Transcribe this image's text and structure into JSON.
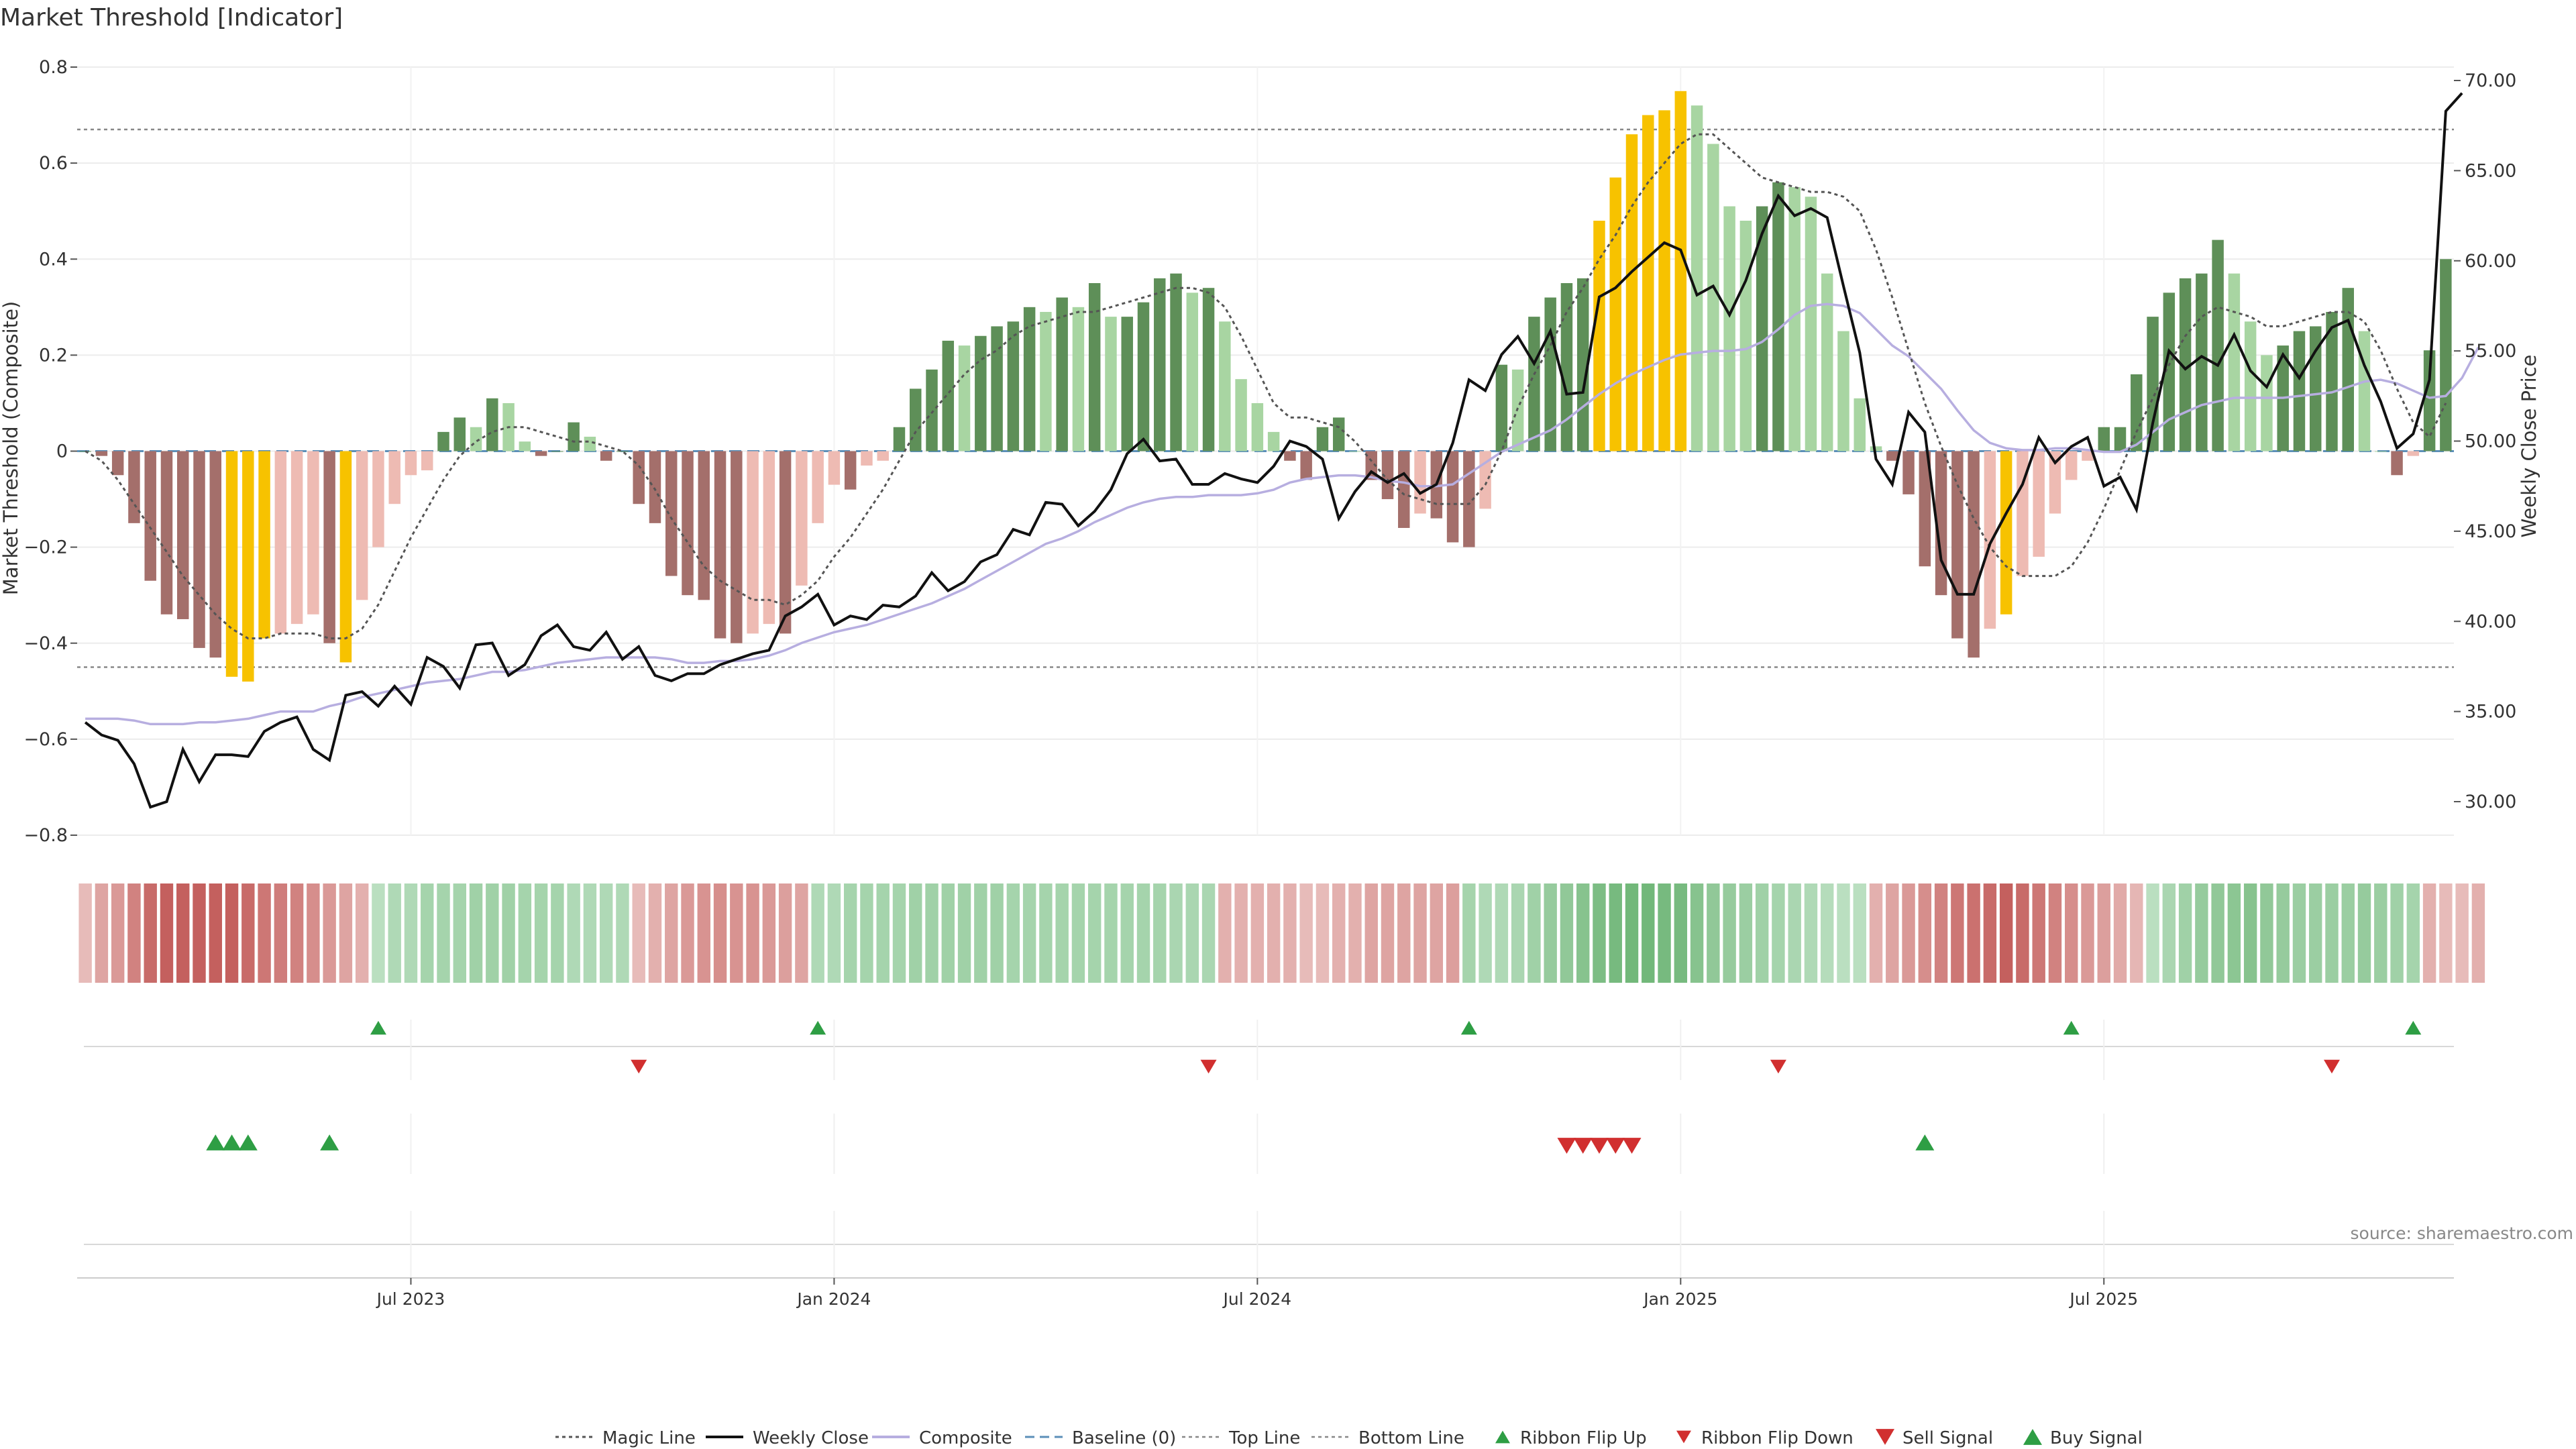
{
  "title": "Market Threshold [Indicator]",
  "source": "source: sharemaestro.com",
  "colors": {
    "positive_strong": "#5e8f58",
    "positive_light": "#a8d5a2",
    "negative_strong": "#a46f6b",
    "negative_light": "#eebbb3",
    "extreme": "#f7c200",
    "weekly_close": "#111111",
    "composite": "#b7aee0",
    "magic_line": "#555555",
    "baseline": "#5b8fb8",
    "buy": "#2e9e44",
    "sell": "#d12f2f"
  },
  "chart_data": {
    "type": "bar",
    "title": "Market Threshold [Indicator]",
    "ylabel_left": "Market Threshold (Composite)",
    "ylabel_right": "Weekly Close Price",
    "ylim_left": [
      -0.8,
      0.8
    ],
    "ylim_right": [
      30,
      70
    ],
    "left_ticks": [
      "0.8",
      "0.6",
      "0.4",
      "0.2",
      "0",
      "−0.2",
      "−0.4",
      "−0.6",
      "−0.8"
    ],
    "right_ticks": [
      "70.00",
      "65.00",
      "60.00",
      "55.00",
      "50.00",
      "45.00",
      "40.00",
      "35.00",
      "30.00"
    ],
    "x_ticks": [
      "Jul 2023",
      "Jan 2024",
      "Jul 2024",
      "Jan 2025",
      "Jul 2025"
    ],
    "x_tick_weeks": [
      20,
      46,
      72,
      98,
      124
    ],
    "top_line": 0.67,
    "bottom_line": -0.45,
    "baseline": 0,
    "grid": true,
    "legend_position": "bottom-center",
    "legend": [
      "Magic Line",
      "Weekly Close",
      "Composite",
      "Baseline (0)",
      "Top Line",
      "Bottom Line",
      "Ribbon Flip Up",
      "Ribbon Flip Down",
      "Sell Signal",
      "Buy Signal"
    ],
    "composite_bars": [
      0.0,
      -0.01,
      -0.05,
      -0.15,
      -0.27,
      -0.34,
      -0.35,
      -0.41,
      -0.43,
      -0.47,
      -0.48,
      -0.39,
      -0.38,
      -0.36,
      -0.34,
      -0.4,
      -0.44,
      -0.31,
      -0.2,
      -0.11,
      -0.05,
      -0.04,
      0.04,
      0.07,
      0.05,
      0.11,
      0.1,
      0.02,
      -0.01,
      0.0,
      0.06,
      0.03,
      -0.02,
      0.0,
      -0.11,
      -0.15,
      -0.26,
      -0.3,
      -0.31,
      -0.39,
      -0.4,
      -0.38,
      -0.36,
      -0.38,
      -0.28,
      -0.15,
      -0.07,
      -0.08,
      -0.03,
      -0.02,
      0.05,
      0.13,
      0.17,
      0.23,
      0.22,
      0.24,
      0.26,
      0.27,
      0.3,
      0.29,
      0.32,
      0.3,
      0.35,
      0.28,
      0.28,
      0.31,
      0.36,
      0.37,
      0.33,
      0.34,
      0.27,
      0.15,
      0.1,
      0.04,
      -0.02,
      -0.06,
      0.05,
      0.07,
      0.0,
      -0.06,
      -0.1,
      -0.16,
      -0.13,
      -0.14,
      -0.19,
      -0.2,
      -0.12,
      0.18,
      0.17,
      0.28,
      0.32,
      0.35,
      0.36,
      0.48,
      0.57,
      0.66,
      0.7,
      0.71,
      0.75,
      0.72,
      0.64,
      0.51,
      0.48,
      0.51,
      0.56,
      0.55,
      0.53,
      0.37,
      0.25,
      0.11,
      0.01,
      -0.02,
      -0.09,
      -0.24,
      -0.3,
      -0.39,
      -0.43,
      -0.37,
      -0.34,
      -0.26,
      -0.22,
      -0.13,
      -0.06,
      -0.02,
      0.05,
      0.05,
      0.16,
      0.28,
      0.33,
      0.36,
      0.37,
      0.44,
      0.37,
      0.27,
      0.2,
      0.22,
      0.25,
      0.26,
      0.29,
      0.34,
      0.25,
      0.0,
      -0.05,
      -0.01,
      0.21,
      0.4
    ],
    "extreme_bars": [
      9,
      10,
      11,
      16,
      93,
      94,
      95,
      96,
      97,
      98,
      118
    ],
    "magic_line": [
      0.0,
      -0.02,
      -0.06,
      -0.11,
      -0.16,
      -0.21,
      -0.26,
      -0.3,
      -0.34,
      -0.37,
      -0.39,
      -0.39,
      -0.38,
      -0.38,
      -0.38,
      -0.39,
      -0.39,
      -0.37,
      -0.32,
      -0.25,
      -0.18,
      -0.12,
      -0.06,
      -0.01,
      0.02,
      0.04,
      0.05,
      0.05,
      0.04,
      0.03,
      0.02,
      0.02,
      0.01,
      0.0,
      -0.03,
      -0.08,
      -0.14,
      -0.19,
      -0.24,
      -0.27,
      -0.29,
      -0.31,
      -0.31,
      -0.32,
      -0.3,
      -0.27,
      -0.22,
      -0.18,
      -0.13,
      -0.08,
      -0.02,
      0.04,
      0.08,
      0.12,
      0.16,
      0.19,
      0.21,
      0.24,
      0.26,
      0.27,
      0.28,
      0.29,
      0.29,
      0.3,
      0.31,
      0.32,
      0.33,
      0.34,
      0.34,
      0.33,
      0.3,
      0.24,
      0.17,
      0.1,
      0.07,
      0.07,
      0.06,
      0.05,
      0.02,
      -0.02,
      -0.06,
      -0.09,
      -0.1,
      -0.11,
      -0.11,
      -0.11,
      -0.07,
      0.0,
      0.09,
      0.16,
      0.22,
      0.29,
      0.34,
      0.4,
      0.45,
      0.51,
      0.56,
      0.6,
      0.64,
      0.66,
      0.66,
      0.63,
      0.6,
      0.57,
      0.56,
      0.55,
      0.54,
      0.54,
      0.53,
      0.5,
      0.42,
      0.32,
      0.21,
      0.1,
      0.01,
      -0.07,
      -0.14,
      -0.2,
      -0.24,
      -0.26,
      -0.26,
      -0.26,
      -0.24,
      -0.19,
      -0.12,
      -0.04,
      0.04,
      0.11,
      0.18,
      0.24,
      0.28,
      0.3,
      0.29,
      0.28,
      0.26,
      0.26,
      0.27,
      0.28,
      0.29,
      0.29,
      0.27,
      0.21,
      0.13,
      0.06,
      0.03,
      0.1
    ],
    "weekly_close": [
      34.4,
      33.7,
      33.4,
      32.1,
      29.7,
      30.0,
      32.9,
      31.1,
      32.6,
      32.6,
      32.5,
      33.9,
      34.4,
      34.7,
      32.9,
      32.3,
      35.9,
      36.1,
      35.3,
      36.4,
      35.4,
      38.0,
      37.5,
      36.3,
      38.7,
      38.8,
      37.0,
      37.6,
      39.2,
      39.8,
      38.6,
      38.4,
      39.4,
      37.9,
      38.6,
      37.0,
      36.7,
      37.1,
      37.1,
      37.6,
      37.9,
      38.2,
      38.4,
      40.3,
      40.8,
      41.5,
      39.8,
      40.3,
      40.1,
      40.9,
      40.8,
      41.4,
      42.7,
      41.7,
      42.2,
      43.3,
      43.7,
      45.1,
      44.8,
      46.6,
      46.5,
      45.3,
      46.1,
      47.3,
      49.3,
      50.1,
      48.9,
      49.0,
      47.6,
      47.6,
      48.2,
      47.9,
      47.7,
      48.6,
      50.0,
      49.7,
      49.0,
      45.7,
      47.2,
      48.3,
      47.7,
      48.2,
      47.1,
      47.6,
      49.9,
      53.4,
      52.8,
      54.8,
      55.8,
      54.3,
      56.1,
      52.6,
      52.7,
      58.0,
      58.5,
      59.4,
      60.2,
      61.0,
      60.6,
      58.1,
      58.6,
      57.0,
      58.9,
      61.5,
      63.6,
      62.5,
      62.9,
      62.4,
      58.6,
      54.9,
      49.0,
      47.6,
      51.6,
      50.5,
      43.4,
      41.5,
      41.5,
      44.3,
      46.0,
      47.6,
      50.2,
      48.8,
      49.7,
      50.2,
      47.5,
      48.0,
      46.2,
      51.0,
      55.0,
      54.0,
      54.7,
      54.2,
      55.9,
      53.9,
      53.0,
      54.8,
      53.5,
      55.0,
      56.3,
      56.7,
      54.2,
      52.2,
      49.6,
      50.4,
      53.4,
      68.3,
      69.3
    ],
    "composite_line": [
      34.6,
      34.6,
      34.6,
      34.5,
      34.3,
      34.3,
      34.3,
      34.4,
      34.4,
      34.5,
      34.6,
      34.8,
      35.0,
      35.0,
      35.0,
      35.3,
      35.5,
      35.8,
      36.0,
      36.2,
      36.4,
      36.6,
      36.7,
      36.8,
      37.0,
      37.2,
      37.2,
      37.3,
      37.5,
      37.7,
      37.8,
      37.9,
      38.0,
      38.0,
      38.0,
      38.0,
      37.9,
      37.7,
      37.7,
      37.8,
      37.8,
      37.9,
      38.1,
      38.4,
      38.8,
      39.1,
      39.4,
      39.6,
      39.8,
      40.1,
      40.4,
      40.7,
      41.0,
      41.4,
      41.8,
      42.3,
      42.8,
      43.3,
      43.8,
      44.3,
      44.6,
      45.0,
      45.5,
      45.9,
      46.3,
      46.6,
      46.8,
      46.9,
      46.9,
      47.0,
      47.0,
      47.0,
      47.1,
      47.3,
      47.7,
      47.9,
      48.0,
      48.1,
      48.1,
      48.0,
      47.8,
      47.7,
      47.5,
      47.5,
      47.6,
      48.2,
      48.8,
      49.4,
      49.8,
      50.2,
      50.6,
      51.2,
      51.9,
      52.6,
      53.2,
      53.7,
      54.1,
      54.5,
      54.8,
      54.9,
      55.0,
      55.0,
      55.1,
      55.5,
      56.2,
      57.0,
      57.5,
      57.6,
      57.5,
      57.1,
      56.2,
      55.3,
      54.7,
      53.8,
      52.9,
      51.7,
      50.6,
      49.9,
      49.6,
      49.5,
      49.5,
      49.6,
      49.6,
      49.5,
      49.4,
      49.4,
      49.8,
      50.5,
      51.2,
      51.6,
      52.0,
      52.2,
      52.4,
      52.4,
      52.4,
      52.4,
      52.5,
      52.6,
      52.7,
      53.0,
      53.3,
      53.4,
      53.2,
      52.8,
      52.4,
      52.5,
      53.5,
      55.2
    ],
    "ribbon_tone": [
      0.2,
      0.4,
      0.5,
      0.7,
      0.9,
      1.0,
      1.0,
      1.0,
      1.0,
      1.0,
      0.9,
      0.8,
      0.75,
      0.7,
      0.6,
      0.5,
      0.4,
      0.3,
      0.2,
      0.3,
      0.3,
      0.4,
      0.4,
      0.4,
      0.45,
      0.45,
      0.45,
      0.4,
      0.4,
      0.4,
      0.3,
      0.3,
      0.3,
      0.3,
      0.2,
      0.3,
      0.4,
      0.5,
      0.55,
      0.6,
      0.55,
      0.55,
      0.5,
      0.45,
      0.4,
      0.3,
      0.3,
      0.4,
      0.4,
      0.4,
      0.4,
      0.45,
      0.45,
      0.45,
      0.45,
      0.45,
      0.45,
      0.4,
      0.4,
      0.4,
      0.4,
      0.4,
      0.4,
      0.4,
      0.4,
      0.4,
      0.4,
      0.35,
      0.35,
      0.35,
      0.3,
      0.3,
      0.3,
      0.3,
      0.3,
      0.2,
      0.2,
      0.3,
      0.3,
      0.4,
      0.4,
      0.4,
      0.4,
      0.4,
      0.45,
      0.4,
      0.3,
      0.3,
      0.35,
      0.45,
      0.55,
      0.6,
      0.7,
      0.8,
      0.85,
      0.9,
      0.9,
      0.85,
      0.85,
      0.7,
      0.6,
      0.55,
      0.5,
      0.45,
      0.4,
      0.35,
      0.3,
      0.25,
      0.2,
      0.2,
      0.3,
      0.4,
      0.5,
      0.6,
      0.7,
      0.8,
      0.85,
      0.9,
      1.0,
      0.9,
      0.8,
      0.7,
      0.6,
      0.5,
      0.45,
      0.35,
      0.25,
      0.2,
      0.35,
      0.45,
      0.55,
      0.6,
      0.65,
      0.7,
      0.6,
      0.55,
      0.5,
      0.5,
      0.5,
      0.5,
      0.55,
      0.5,
      0.45,
      0.4,
      0.3,
      0.2,
      0.2,
      0.3
    ],
    "ribbon_sign": [
      -1,
      -1,
      -1,
      -1,
      -1,
      -1,
      -1,
      -1,
      -1,
      -1,
      -1,
      -1,
      -1,
      -1,
      -1,
      -1,
      -1,
      -1,
      1,
      1,
      1,
      1,
      1,
      1,
      1,
      1,
      1,
      1,
      1,
      1,
      1,
      1,
      1,
      1,
      -1,
      -1,
      -1,
      -1,
      -1,
      -1,
      -1,
      -1,
      -1,
      -1,
      -1,
      1,
      1,
      1,
      1,
      1,
      1,
      1,
      1,
      1,
      1,
      1,
      1,
      1,
      1,
      1,
      1,
      1,
      1,
      1,
      1,
      1,
      1,
      1,
      1,
      1,
      -1,
      -1,
      -1,
      -1,
      -1,
      -1,
      -1,
      -1,
      -1,
      -1,
      -1,
      -1,
      -1,
      -1,
      -1,
      1,
      1,
      1,
      1,
      1,
      1,
      1,
      1,
      1,
      1,
      1,
      1,
      1,
      1,
      1,
      1,
      1,
      1,
      1,
      1,
      1,
      1,
      1,
      1,
      1,
      -1,
      -1,
      -1,
      -1,
      -1,
      -1,
      -1,
      -1,
      -1,
      -1,
      -1,
      -1,
      -1,
      -1,
      -1,
      -1,
      -1,
      1,
      1,
      1,
      1,
      1,
      1,
      1,
      1,
      1,
      1,
      1,
      1,
      1,
      1,
      1,
      1,
      1,
      -1,
      -1,
      -1,
      -1
    ],
    "ribbon_flip_up": [
      18,
      45,
      85,
      122,
      143
    ],
    "ribbon_flip_down": [
      34,
      69,
      104,
      138
    ],
    "buy_signals": [
      8,
      9,
      10,
      15,
      113
    ],
    "sell_signals": [
      91,
      92,
      93,
      94,
      95
    ]
  }
}
